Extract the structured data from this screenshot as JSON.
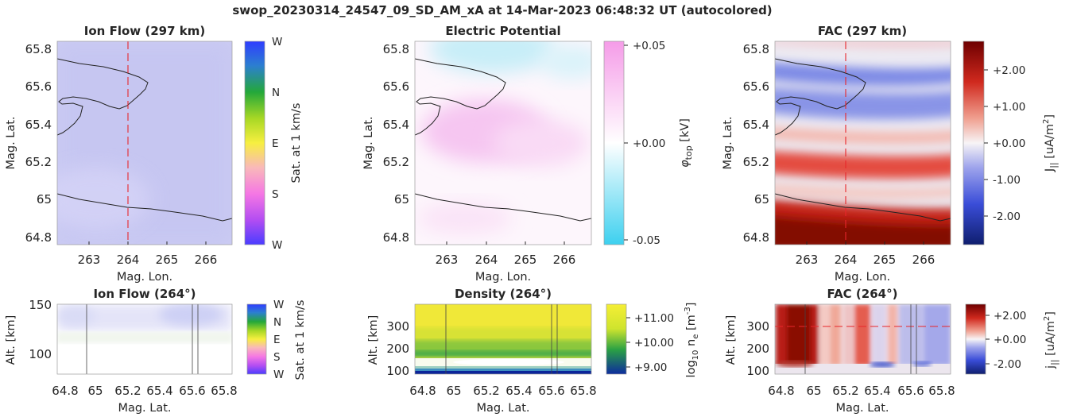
{
  "figure": {
    "title": "swop_20230314_24547_09_SD_AM_xA at 14-Mar-2023 06:48:32 UT (autocolored)"
  },
  "chart_data": [
    {
      "type": "heatmap",
      "title": "Ion Flow (297 km)",
      "xlabel": "Mag. Lon.",
      "ylabel": "Mag. Lat.",
      "xlim": [
        262.2,
        266.7
      ],
      "ylim": [
        64.76,
        65.85
      ],
      "xticks": [
        "263",
        "264",
        "265",
        "266"
      ],
      "yticks": [
        "65.8",
        "65.6",
        "65.4",
        "65.2",
        "65",
        "64.8"
      ],
      "ref_line_x": 264,
      "colorbar": {
        "label": "Sat. at 1 km/s",
        "ticks": [
          "W",
          "N",
          "E",
          "S",
          "W"
        ]
      }
    },
    {
      "type": "heatmap",
      "title": "Electric Potential",
      "xlabel": "Mag. Lon.",
      "ylabel": "Mag. Lat.",
      "xlim": [
        262.2,
        266.7
      ],
      "ylim": [
        64.76,
        65.85
      ],
      "xticks": [
        "263",
        "264",
        "265",
        "266"
      ],
      "yticks": [
        "65.8",
        "65.6",
        "65.4",
        "65.2",
        "65",
        "64.8"
      ],
      "colorbar": {
        "label_main": "φ",
        "label_sub": "top",
        "label_unit": " [kV]",
        "ticks": [
          "+0.05",
          "+0.00",
          "-0.05"
        ],
        "range": [
          -0.05,
          0.05
        ]
      }
    },
    {
      "type": "heatmap",
      "title": "FAC (297 km)",
      "xlabel": "Mag. Lon.",
      "ylabel": "Mag. Lat.",
      "xlim": [
        262.2,
        266.7
      ],
      "ylim": [
        64.76,
        65.85
      ],
      "xticks": [
        "263",
        "264",
        "265",
        "266"
      ],
      "yticks": [
        "65.8",
        "65.6",
        "65.4",
        "65.2",
        "65",
        "64.8"
      ],
      "ref_line_x": 264,
      "colorbar": {
        "label_main": "J",
        "label_sub": "||",
        "label_unit": " [uA/m",
        "label_sup": "2",
        "label_end": "]",
        "ticks": [
          "+2.00",
          "+1.00",
          "+0.00",
          "-1.00",
          "-2.00"
        ],
        "range": [
          -2.8,
          2.8
        ]
      }
    },
    {
      "type": "heatmap",
      "title": "Ion Flow (264°)",
      "xlabel": "Mag. Lat.",
      "ylabel": "Alt. [km]",
      "xlim": [
        64.76,
        65.85
      ],
      "ylim": [
        78,
        150
      ],
      "xticks": [
        "64.8",
        "65",
        "65.2",
        "65.4",
        "65.6",
        "65.8"
      ],
      "yticks": [
        "150",
        "100"
      ],
      "colorbar": {
        "label": "Sat. at 1 km/s",
        "ticks": [
          "W",
          "N",
          "E",
          "S",
          "W"
        ]
      }
    },
    {
      "type": "heatmap",
      "title": "Density (264°)",
      "xlabel": "Mag. Lat.",
      "ylabel": "Alt. [km]",
      "xlim": [
        64.76,
        65.85
      ],
      "ylim": [
        90,
        395
      ],
      "xticks": [
        "64.8",
        "65",
        "65.2",
        "65.4",
        "65.6",
        "65.8"
      ],
      "yticks": [
        "300",
        "200",
        "100"
      ],
      "colorbar": {
        "label_main": "log",
        "label_sub": "10",
        "label_mid": " n",
        "label_sub2": "e",
        "label_unit": " [m",
        "label_sup": "-3",
        "label_end": "]",
        "ticks": [
          "+11.00",
          "+10.00",
          "+9.00"
        ],
        "range": [
          8.7,
          11.4
        ]
      }
    },
    {
      "type": "heatmap",
      "title": "FAC (264°)",
      "xlabel": "Mag. Lat.",
      "ylabel": "Alt. [km]",
      "xlim": [
        64.76,
        65.85
      ],
      "ylim": [
        90,
        395
      ],
      "xticks": [
        "64.8",
        "65",
        "65.2",
        "65.4",
        "65.6",
        "65.8"
      ],
      "yticks": [
        "300",
        "200",
        "100"
      ],
      "ref_line_y": 300,
      "colorbar": {
        "label_main": "j",
        "label_sub": "||",
        "label_unit": " [uA/m",
        "label_sup": "2",
        "label_end": "]",
        "ticks": [
          "+2.00",
          "+0.00",
          "-2.00"
        ],
        "range": [
          -2.8,
          2.8
        ]
      }
    }
  ]
}
